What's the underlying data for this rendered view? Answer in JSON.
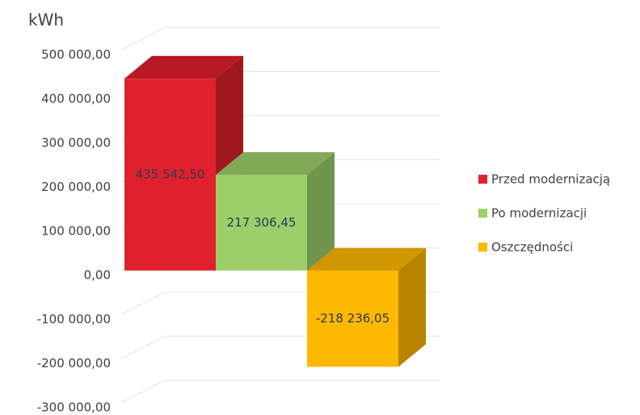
{
  "chart_data": {
    "type": "bar3d",
    "y_label": "kWh",
    "categories": [
      null
    ],
    "series": [
      {
        "name": "Przed modernizacją",
        "color": "#e0202c",
        "values": [
          435542.5
        ],
        "value_labels": [
          "435 542,50"
        ]
      },
      {
        "name": "Po modernizacji",
        "color": "#9ccf6a",
        "values": [
          217306.45
        ],
        "value_labels": [
          "217 306,45"
        ]
      },
      {
        "name": "Oszczędności",
        "color": "#ffb800",
        "values": [
          -218236.05
        ],
        "value_labels": [
          "-218 236,05"
        ]
      }
    ],
    "ylim": [
      -300000,
      500000
    ],
    "yticks": [
      {
        "value": -300000,
        "label": "-300 000,00"
      },
      {
        "value": -200000,
        "label": "-200 000,00"
      },
      {
        "value": -100000,
        "label": "-100 000,00"
      },
      {
        "value": 0,
        "label": "0,00"
      },
      {
        "value": 100000,
        "label": "100 000,00"
      },
      {
        "value": 200000,
        "label": "200 000,00"
      },
      {
        "value": 300000,
        "label": "300 000,00"
      },
      {
        "value": 400000,
        "label": "400 000,00"
      },
      {
        "value": 500000,
        "label": "500 000,00"
      }
    ],
    "grid": true,
    "legend": "right"
  }
}
